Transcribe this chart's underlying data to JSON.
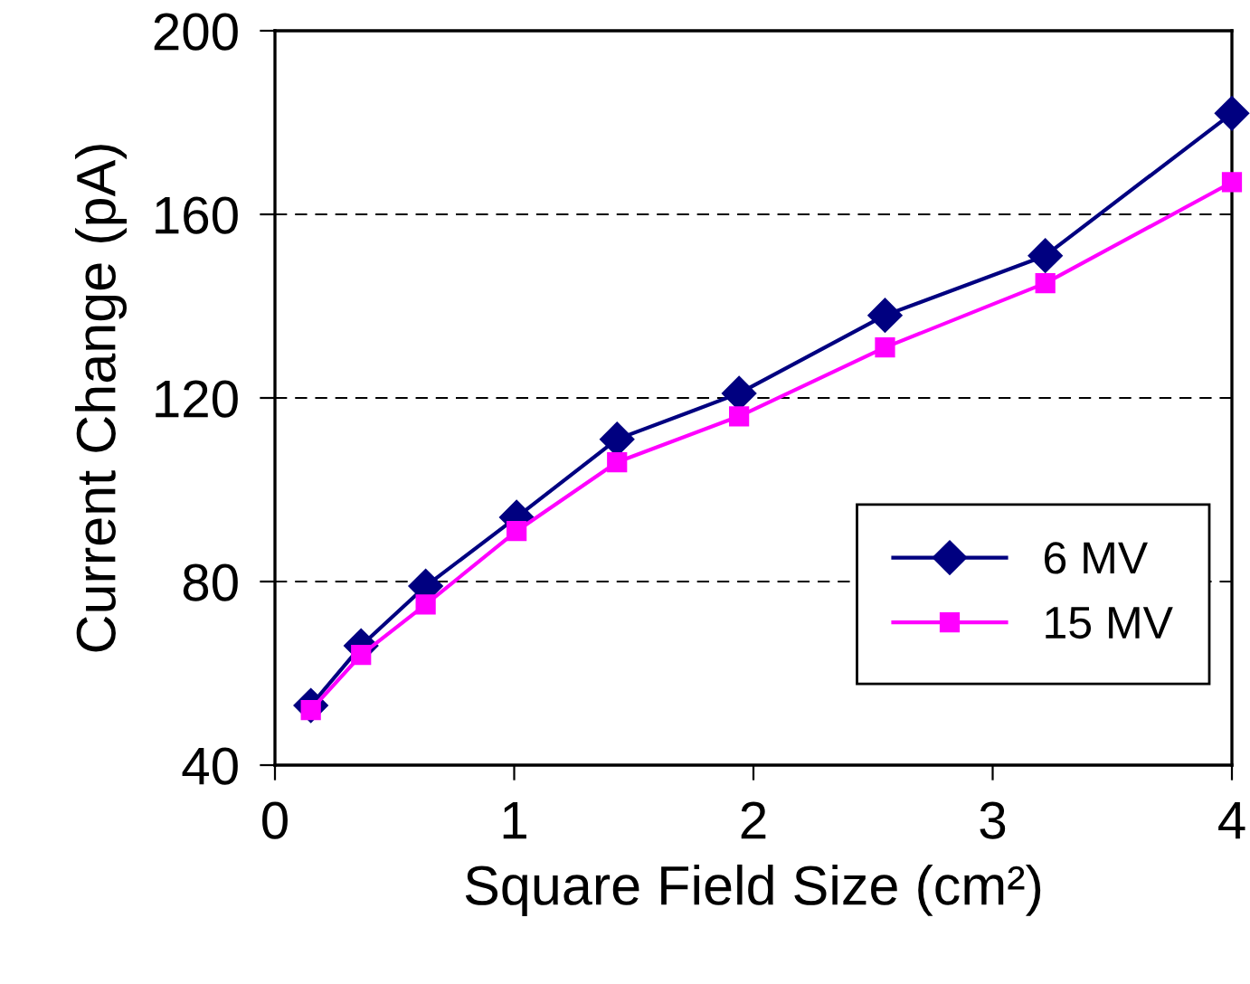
{
  "chart_data": {
    "type": "line",
    "xlabel": "Square Field Size (cm²)",
    "ylabel": "Current Change (pA)",
    "xlim": [
      0,
      4
    ],
    "xticks": [
      0,
      1,
      2,
      3,
      4
    ],
    "ylim": [
      40,
      200
    ],
    "yticks": [
      40,
      80,
      120,
      160,
      200
    ],
    "grid": "y",
    "legend": "bottom right",
    "line_style": "solid",
    "series": [
      {
        "name": "6 MV",
        "color": "#000080",
        "marker": "diamond",
        "x": [
          0.15,
          0.36,
          0.63,
          1.01,
          1.43,
          1.94,
          2.55,
          3.22,
          4.0
        ],
        "values": [
          53,
          66,
          79,
          94,
          111,
          121,
          138,
          151,
          182
        ]
      },
      {
        "name": "15 MV",
        "color": "#ff00ff",
        "marker": "square",
        "x": [
          0.15,
          0.36,
          0.63,
          1.01,
          1.43,
          1.94,
          2.55,
          3.22,
          4.0
        ],
        "values": [
          52,
          64,
          75,
          91,
          106,
          116,
          131,
          145,
          167
        ]
      }
    ]
  }
}
